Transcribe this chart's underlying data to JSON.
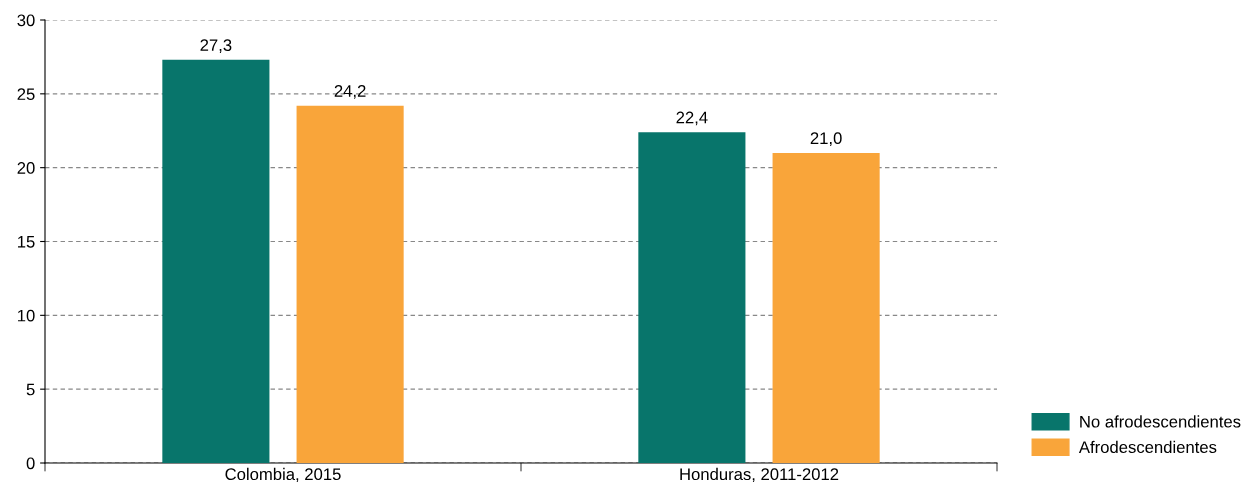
{
  "chart_data": {
    "type": "bar",
    "categories": [
      "Colombia, 2015",
      "Honduras, 2011-2012"
    ],
    "series": [
      {
        "name": "No afrodescendientes",
        "color": "#08756b",
        "values": [
          27.3,
          22.4
        ],
        "value_labels": [
          "27,3",
          "22,4"
        ]
      },
      {
        "name": "Afrodescendientes",
        "color": "#f9a53a",
        "values": [
          24.2,
          21.0
        ],
        "value_labels": [
          "24,2",
          "21,0"
        ]
      }
    ],
    "ylim": [
      0,
      30
    ],
    "yticks": [
      0,
      5,
      10,
      15,
      20,
      25,
      30
    ],
    "grid": "y",
    "legend": "bottom right"
  }
}
